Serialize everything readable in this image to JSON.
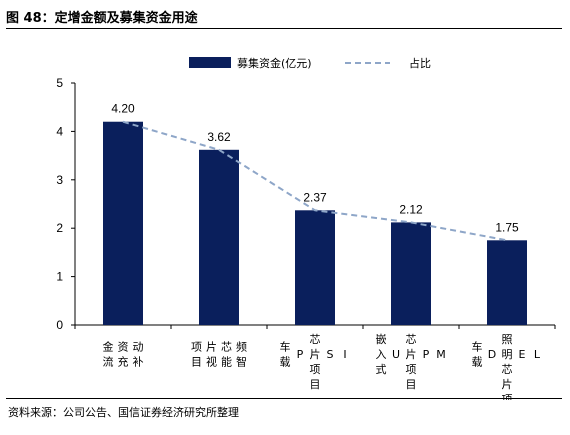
{
  "header": {
    "title": "图 48：定增金额及募集资金用途"
  },
  "footer": {
    "source": "资料来源：公司公告、国信证券经济研究所整理"
  },
  "chart_data": {
    "type": "bar",
    "categories": [
      "动补资充金流",
      "频智芯能片视项目",
      "ISP芯片项目车载",
      "MPU芯片项目嵌入式",
      "LED照明芯片项目车载"
    ],
    "category_lines": [
      [
        "动补",
        "资充",
        "金流"
      ],
      [
        "频智",
        "芯能",
        "片视",
        "项目"
      ],
      [
        "I",
        "S",
        "芯片项目",
        "P",
        "车载"
      ],
      [
        "M",
        "P",
        "芯片项目",
        "U",
        "嵌入式"
      ],
      [
        "L",
        "E",
        "照明芯片项目",
        "D",
        "车载"
      ]
    ],
    "series": [
      {
        "name": "募集资金(亿元)",
        "type": "bar",
        "values": [
          4.2,
          3.62,
          2.37,
          2.12,
          1.75
        ],
        "labels": [
          "4.20",
          "3.62",
          "2.37",
          "2.12",
          "1.75"
        ],
        "color": "#0a1f5c"
      },
      {
        "name": "占比",
        "type": "line",
        "style": "dashed",
        "values": [
          4.2,
          3.62,
          2.37,
          2.12,
          1.75
        ],
        "color": "#8ea6c8"
      }
    ],
    "y_ticks": [
      "0",
      "1",
      "2",
      "3",
      "4",
      "5"
    ],
    "ylim": [
      0,
      5
    ],
    "grid": false,
    "legend_position": "top-center"
  }
}
